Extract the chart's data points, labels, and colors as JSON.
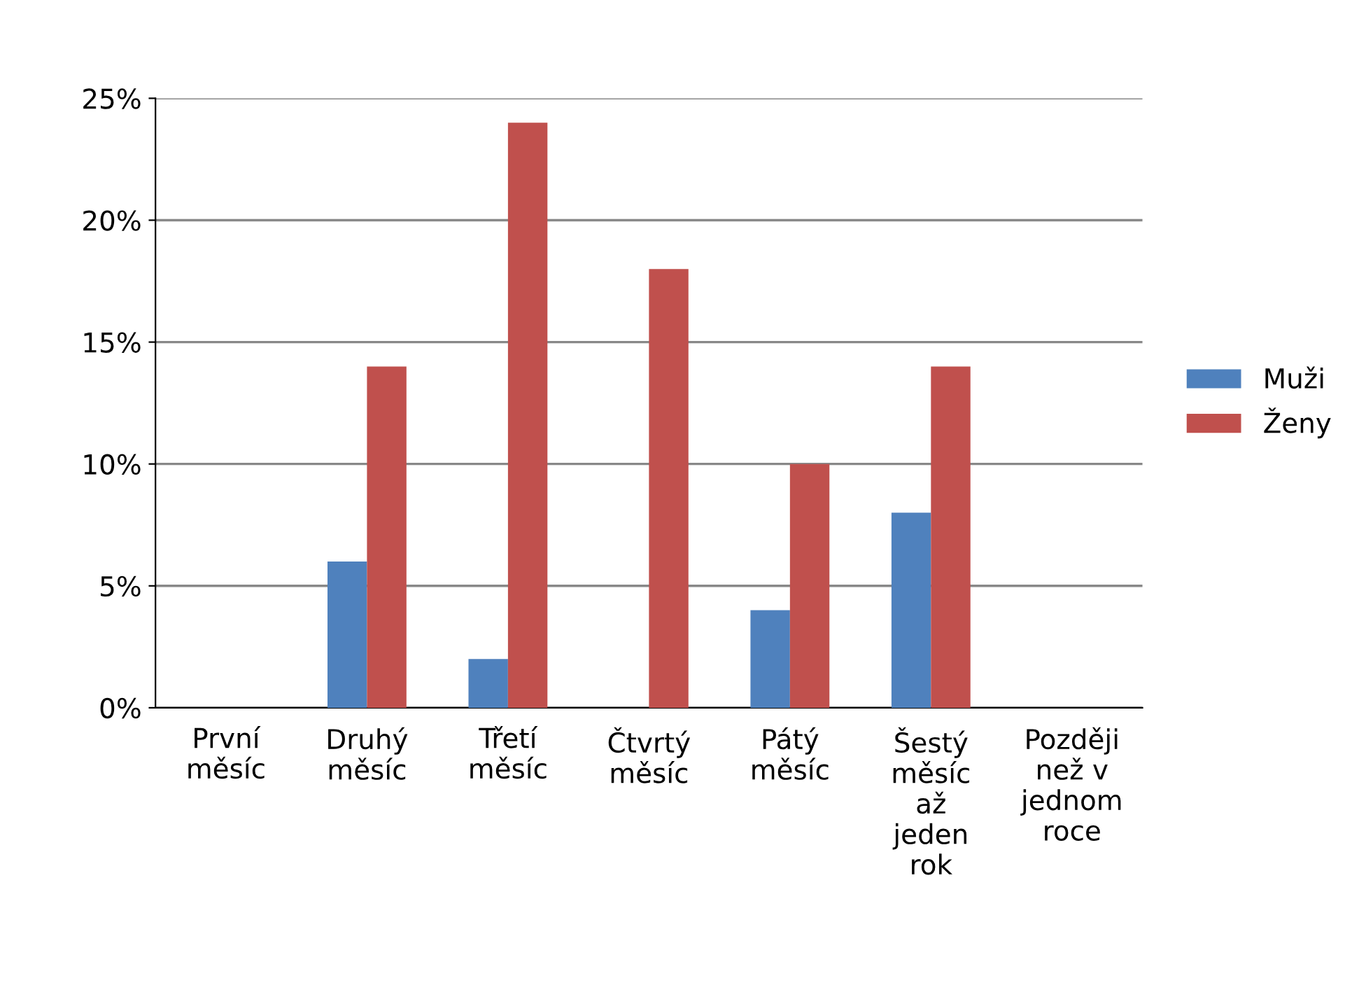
{
  "chart_data": {
    "type": "bar",
    "categories": [
      "První\nměsíc",
      "Druhý\nměsíc",
      "Třetí\nměsíc",
      "Čtvrtý\nměsíc",
      "Pátý\nměsíc",
      "Šestý\nměsíc\naž\njeden\nrok",
      "Později\nnež v\njednom\nroce"
    ],
    "series": [
      {
        "name": "Muži",
        "color": "#4f81bd",
        "values": [
          0,
          6,
          2,
          0,
          4,
          8,
          0
        ]
      },
      {
        "name": "Ženy",
        "color": "#c0504d",
        "values": [
          0,
          14,
          24,
          18,
          10,
          14,
          0
        ]
      }
    ],
    "ylim": [
      0,
      25
    ],
    "yticks": [
      {
        "value": 0,
        "label": "0%"
      },
      {
        "value": 5,
        "label": "5%"
      },
      {
        "value": 10,
        "label": "10%"
      },
      {
        "value": 15,
        "label": "15%"
      },
      {
        "value": 20,
        "label": "20%"
      },
      {
        "value": 25,
        "label": "25%"
      }
    ],
    "grid": "y",
    "legend": "right"
  }
}
